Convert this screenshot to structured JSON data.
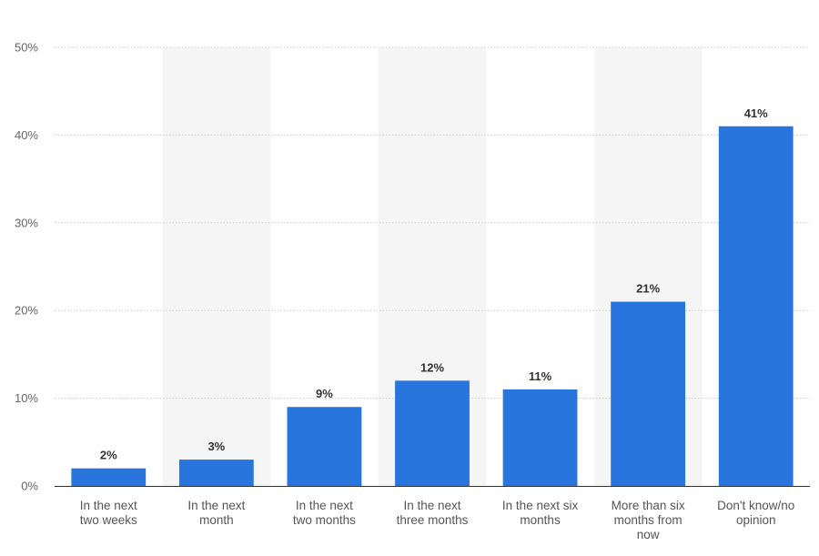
{
  "chart_data": {
    "type": "bar",
    "categories": [
      "In the next two weeks",
      "In the next month",
      "In the next two months",
      "In the next three months",
      "In the next six months",
      "More than six months from now",
      "Don't know/no opinion"
    ],
    "category_lines": [
      [
        "In the next",
        "two weeks"
      ],
      [
        "In the next",
        "month"
      ],
      [
        "In the next",
        "two months"
      ],
      [
        "In the next",
        "three months"
      ],
      [
        "In the next six",
        "months"
      ],
      [
        "More than six",
        "months from",
        "now"
      ],
      [
        "Don't know/no",
        "opinion"
      ]
    ],
    "values": [
      2,
      3,
      9,
      12,
      11,
      21,
      41
    ],
    "data_labels": [
      "2%",
      "3%",
      "9%",
      "12%",
      "11%",
      "21%",
      "41%"
    ],
    "ylim": [
      0,
      50
    ],
    "yticks": [
      0,
      10,
      20,
      30,
      40,
      50
    ],
    "ytick_labels": [
      "0%",
      "10%",
      "20%",
      "30%",
      "40%",
      "50%"
    ],
    "title": "",
    "xlabel": "",
    "ylabel": "",
    "grid": true,
    "legend": "none",
    "bar_color": "#2876dd",
    "band_color": "#f5f5f5"
  }
}
